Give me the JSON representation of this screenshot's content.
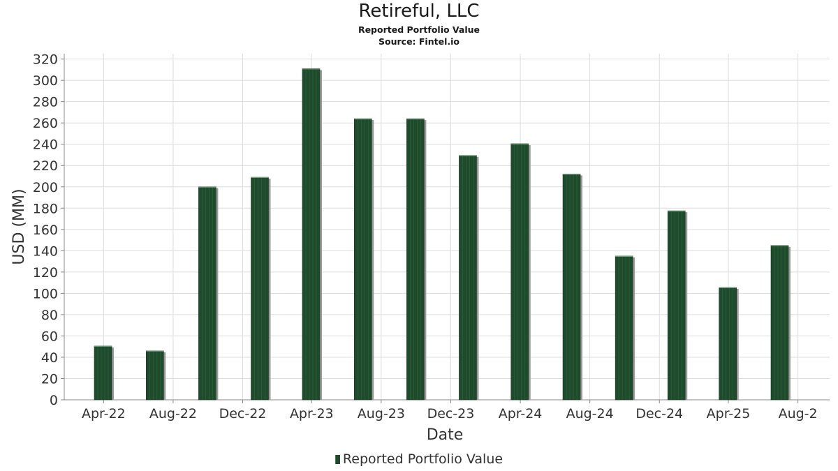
{
  "chart_data": {
    "type": "bar",
    "title": "Retireful, LLC",
    "subtitle": "Reported Portfolio Value",
    "source": "Source: Fintel.io",
    "xlabel": "Date",
    "ylabel": "USD (MM)",
    "ylim": [
      0,
      325
    ],
    "yticks": [
      0,
      20,
      40,
      60,
      80,
      100,
      120,
      140,
      160,
      180,
      200,
      220,
      240,
      260,
      280,
      300,
      320
    ],
    "xticks": [
      "Apr-22",
      "Aug-22",
      "Dec-22",
      "Apr-23",
      "Aug-23",
      "Dec-23",
      "Apr-24",
      "Aug-24",
      "Dec-24",
      "Apr-25",
      "Aug-2"
    ],
    "x": [
      "2022-03-31",
      "2022-06-30",
      "2022-09-30",
      "2022-12-31",
      "2023-03-31",
      "2023-06-30",
      "2023-09-30",
      "2023-12-31",
      "2024-03-31",
      "2024-06-30",
      "2024-09-30",
      "2024-12-31",
      "2025-03-31",
      "2025-06-30"
    ],
    "series": [
      {
        "name": "Reported Portfolio Value",
        "color": "#1f4a2c",
        "values": [
          50.5,
          46,
          200,
          209,
          311,
          264,
          264,
          229.5,
          240.5,
          212,
          135,
          177.5,
          105.5,
          145
        ]
      }
    ],
    "grid": true,
    "legend": "bottom-center"
  }
}
